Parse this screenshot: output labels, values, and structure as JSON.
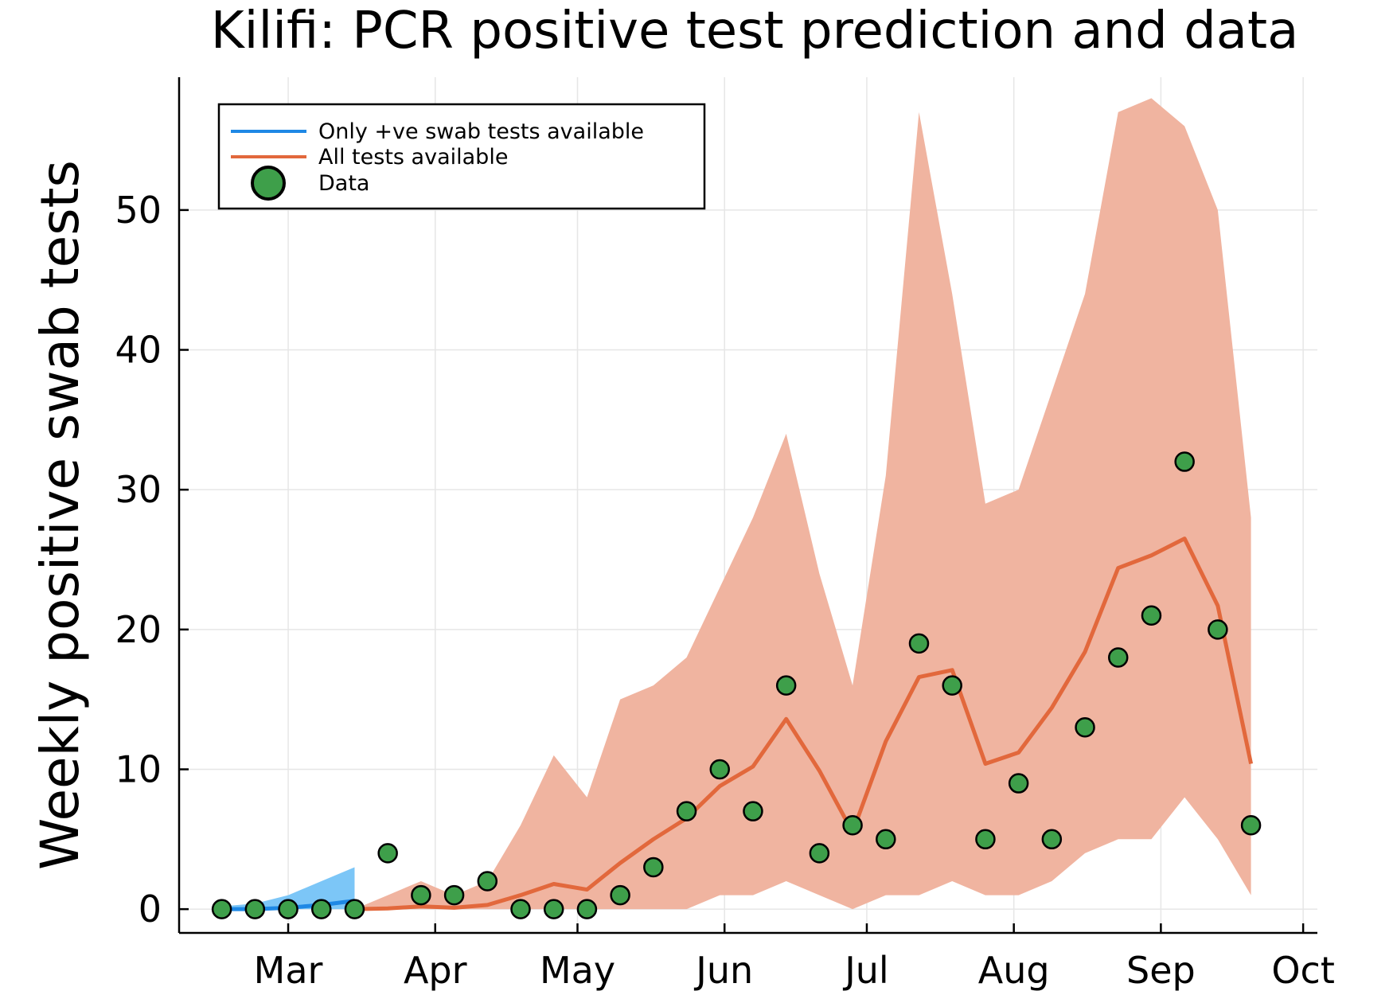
{
  "chart_data": {
    "type": "line",
    "title": "Kilifi: PCR positive test prediction and data",
    "xlabel": "",
    "ylabel": "Weekly positive swab tests",
    "x_ticks": [
      "Mar",
      "Apr",
      "May",
      "Jun",
      "Jul",
      "Aug",
      "Sep",
      "Oct"
    ],
    "ylim": [
      -1.7,
      59.5
    ],
    "y_ticks": [
      0,
      10,
      20,
      30,
      40,
      50
    ],
    "grid": true,
    "legend_position": "top-left",
    "legend": [
      "Only +ve swab tests available",
      "All tests available",
      "Data"
    ],
    "colors": {
      "only_positive_line": "#1e88e5",
      "only_positive_band": "#7cc6f7",
      "all_tests_line": "#e2683c",
      "all_tests_band": "#f0b4a0",
      "data_fill": "#3e9f4a"
    },
    "series": [
      {
        "name": "Only +ve swab tests available",
        "x": [
          "Feb 16",
          "Feb 23",
          "Mar 1",
          "Mar 8",
          "Mar 15"
        ],
        "values": [
          0.0,
          0.0,
          0.1,
          0.3,
          0.6
        ],
        "lower": [
          0,
          0,
          0,
          0,
          0
        ],
        "upper": [
          0.2,
          0.4,
          1.0,
          2.0,
          3.0
        ]
      },
      {
        "name": "All tests available",
        "x": [
          "Mar 15",
          "Mar 22",
          "Mar 29",
          "Apr 5",
          "Apr 12",
          "Apr 19",
          "Apr 26",
          "May 3",
          "May 10",
          "May 17",
          "May 24",
          "May 31",
          "Jun 7",
          "Jun 14",
          "Jun 21",
          "Jun 28",
          "Jul 5",
          "Jul 12",
          "Jul 19",
          "Jul 26",
          "Aug 2",
          "Aug 9",
          "Aug 16",
          "Aug 23",
          "Aug 30",
          "Sep 6",
          "Sep 13",
          "Sep 20"
        ],
        "values": [
          0.0,
          0.05,
          0.2,
          0.1,
          0.3,
          1.0,
          1.8,
          1.4,
          3.3,
          5.0,
          6.5,
          8.8,
          10.2,
          13.6,
          9.9,
          5.5,
          12.0,
          16.6,
          17.1,
          10.4,
          11.2,
          14.4,
          18.4,
          24.4,
          25.3,
          26.5,
          21.7,
          10.4
        ],
        "lower": [
          0,
          0,
          0,
          0,
          0,
          0,
          0,
          0,
          0,
          0,
          0,
          1,
          1,
          2,
          1,
          0,
          1,
          1,
          2,
          1,
          1,
          2,
          4,
          5,
          5,
          8,
          5,
          1
        ],
        "upper": [
          0.0,
          1.0,
          2.0,
          1.0,
          2.0,
          6.0,
          11.0,
          8.0,
          15.0,
          16.0,
          18.0,
          23.0,
          28.0,
          34.0,
          24.0,
          16.0,
          31.0,
          57.0,
          44.0,
          29.0,
          30.0,
          37.0,
          44.0,
          57.0,
          58.0,
          56.0,
          50.0,
          28.0
        ]
      },
      {
        "name": "Data",
        "x": [
          "Feb 16",
          "Feb 23",
          "Mar 1",
          "Mar 8",
          "Mar 15",
          "Mar 22",
          "Mar 29",
          "Apr 5",
          "Apr 12",
          "Apr 19",
          "Apr 26",
          "May 3",
          "May 10",
          "May 17",
          "May 24",
          "May 31",
          "Jun 7",
          "Jun 14",
          "Jun 21",
          "Jun 28",
          "Jul 5",
          "Jul 12",
          "Jul 19",
          "Jul 26",
          "Aug 2",
          "Aug 9",
          "Aug 16",
          "Aug 23",
          "Aug 30",
          "Sep 6",
          "Sep 13",
          "Sep 20"
        ],
        "values": [
          0,
          0,
          0,
          0,
          0,
          4,
          1,
          1,
          2,
          0,
          0,
          0,
          1,
          3,
          7,
          10,
          7,
          16,
          4,
          6,
          5,
          19,
          16,
          5,
          9,
          5,
          13,
          18,
          21,
          32,
          20,
          6
        ]
      }
    ]
  }
}
